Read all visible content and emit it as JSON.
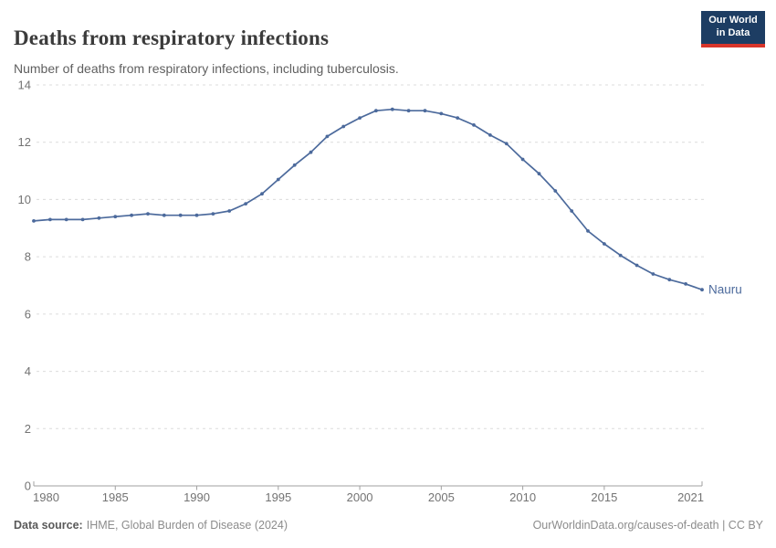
{
  "header": {
    "title": "Deaths from respiratory infections",
    "subtitle": "Number of deaths from respiratory infections, including tuberculosis.",
    "logo_line1": "Our World",
    "logo_line2": "in Data"
  },
  "footer": {
    "source_label": "Data source:",
    "source_text": "IHME, Global Burden of Disease (2024)",
    "credit": "OurWorldinData.org/causes-of-death | CC BY"
  },
  "colors": {
    "series_line": "#4c6a9c",
    "gridline": "#dcdcdc",
    "axis": "#a0a0a0",
    "tick_label": "#737373",
    "logo_bg": "#1d3d63",
    "logo_stripe": "#d8352a"
  },
  "chart_data": {
    "type": "line",
    "title": "Deaths from respiratory infections",
    "subtitle": "Number of deaths from respiratory infections, including tuberculosis.",
    "xlabel": "",
    "ylabel": "",
    "xlim": [
      1980,
      2021
    ],
    "ylim": [
      0,
      14
    ],
    "x_ticks": [
      1980,
      1985,
      1990,
      1995,
      2000,
      2005,
      2010,
      2015,
      2021
    ],
    "y_ticks": [
      0,
      2,
      4,
      6,
      8,
      10,
      12,
      14
    ],
    "grid": "horizontal-dashed",
    "legend_position": "end-of-line-label",
    "series": [
      {
        "name": "Nauru",
        "color": "#4c6a9c",
        "x": [
          1980,
          1981,
          1982,
          1983,
          1984,
          1985,
          1986,
          1987,
          1988,
          1989,
          1990,
          1991,
          1992,
          1993,
          1994,
          1995,
          1996,
          1997,
          1998,
          1999,
          2000,
          2001,
          2002,
          2003,
          2004,
          2005,
          2006,
          2007,
          2008,
          2009,
          2010,
          2011,
          2012,
          2013,
          2014,
          2015,
          2016,
          2017,
          2018,
          2019,
          2020,
          2021
        ],
        "values": [
          9.25,
          9.3,
          9.3,
          9.3,
          9.35,
          9.4,
          9.45,
          9.5,
          9.45,
          9.45,
          9.45,
          9.5,
          9.6,
          9.85,
          10.2,
          10.7,
          11.2,
          11.65,
          12.2,
          12.55,
          12.85,
          13.1,
          13.15,
          13.1,
          13.1,
          13.0,
          12.85,
          12.6,
          12.25,
          11.95,
          11.4,
          10.9,
          10.3,
          9.6,
          8.9,
          8.45,
          8.05,
          7.7,
          7.4,
          7.2,
          7.05,
          6.85
        ]
      }
    ]
  }
}
